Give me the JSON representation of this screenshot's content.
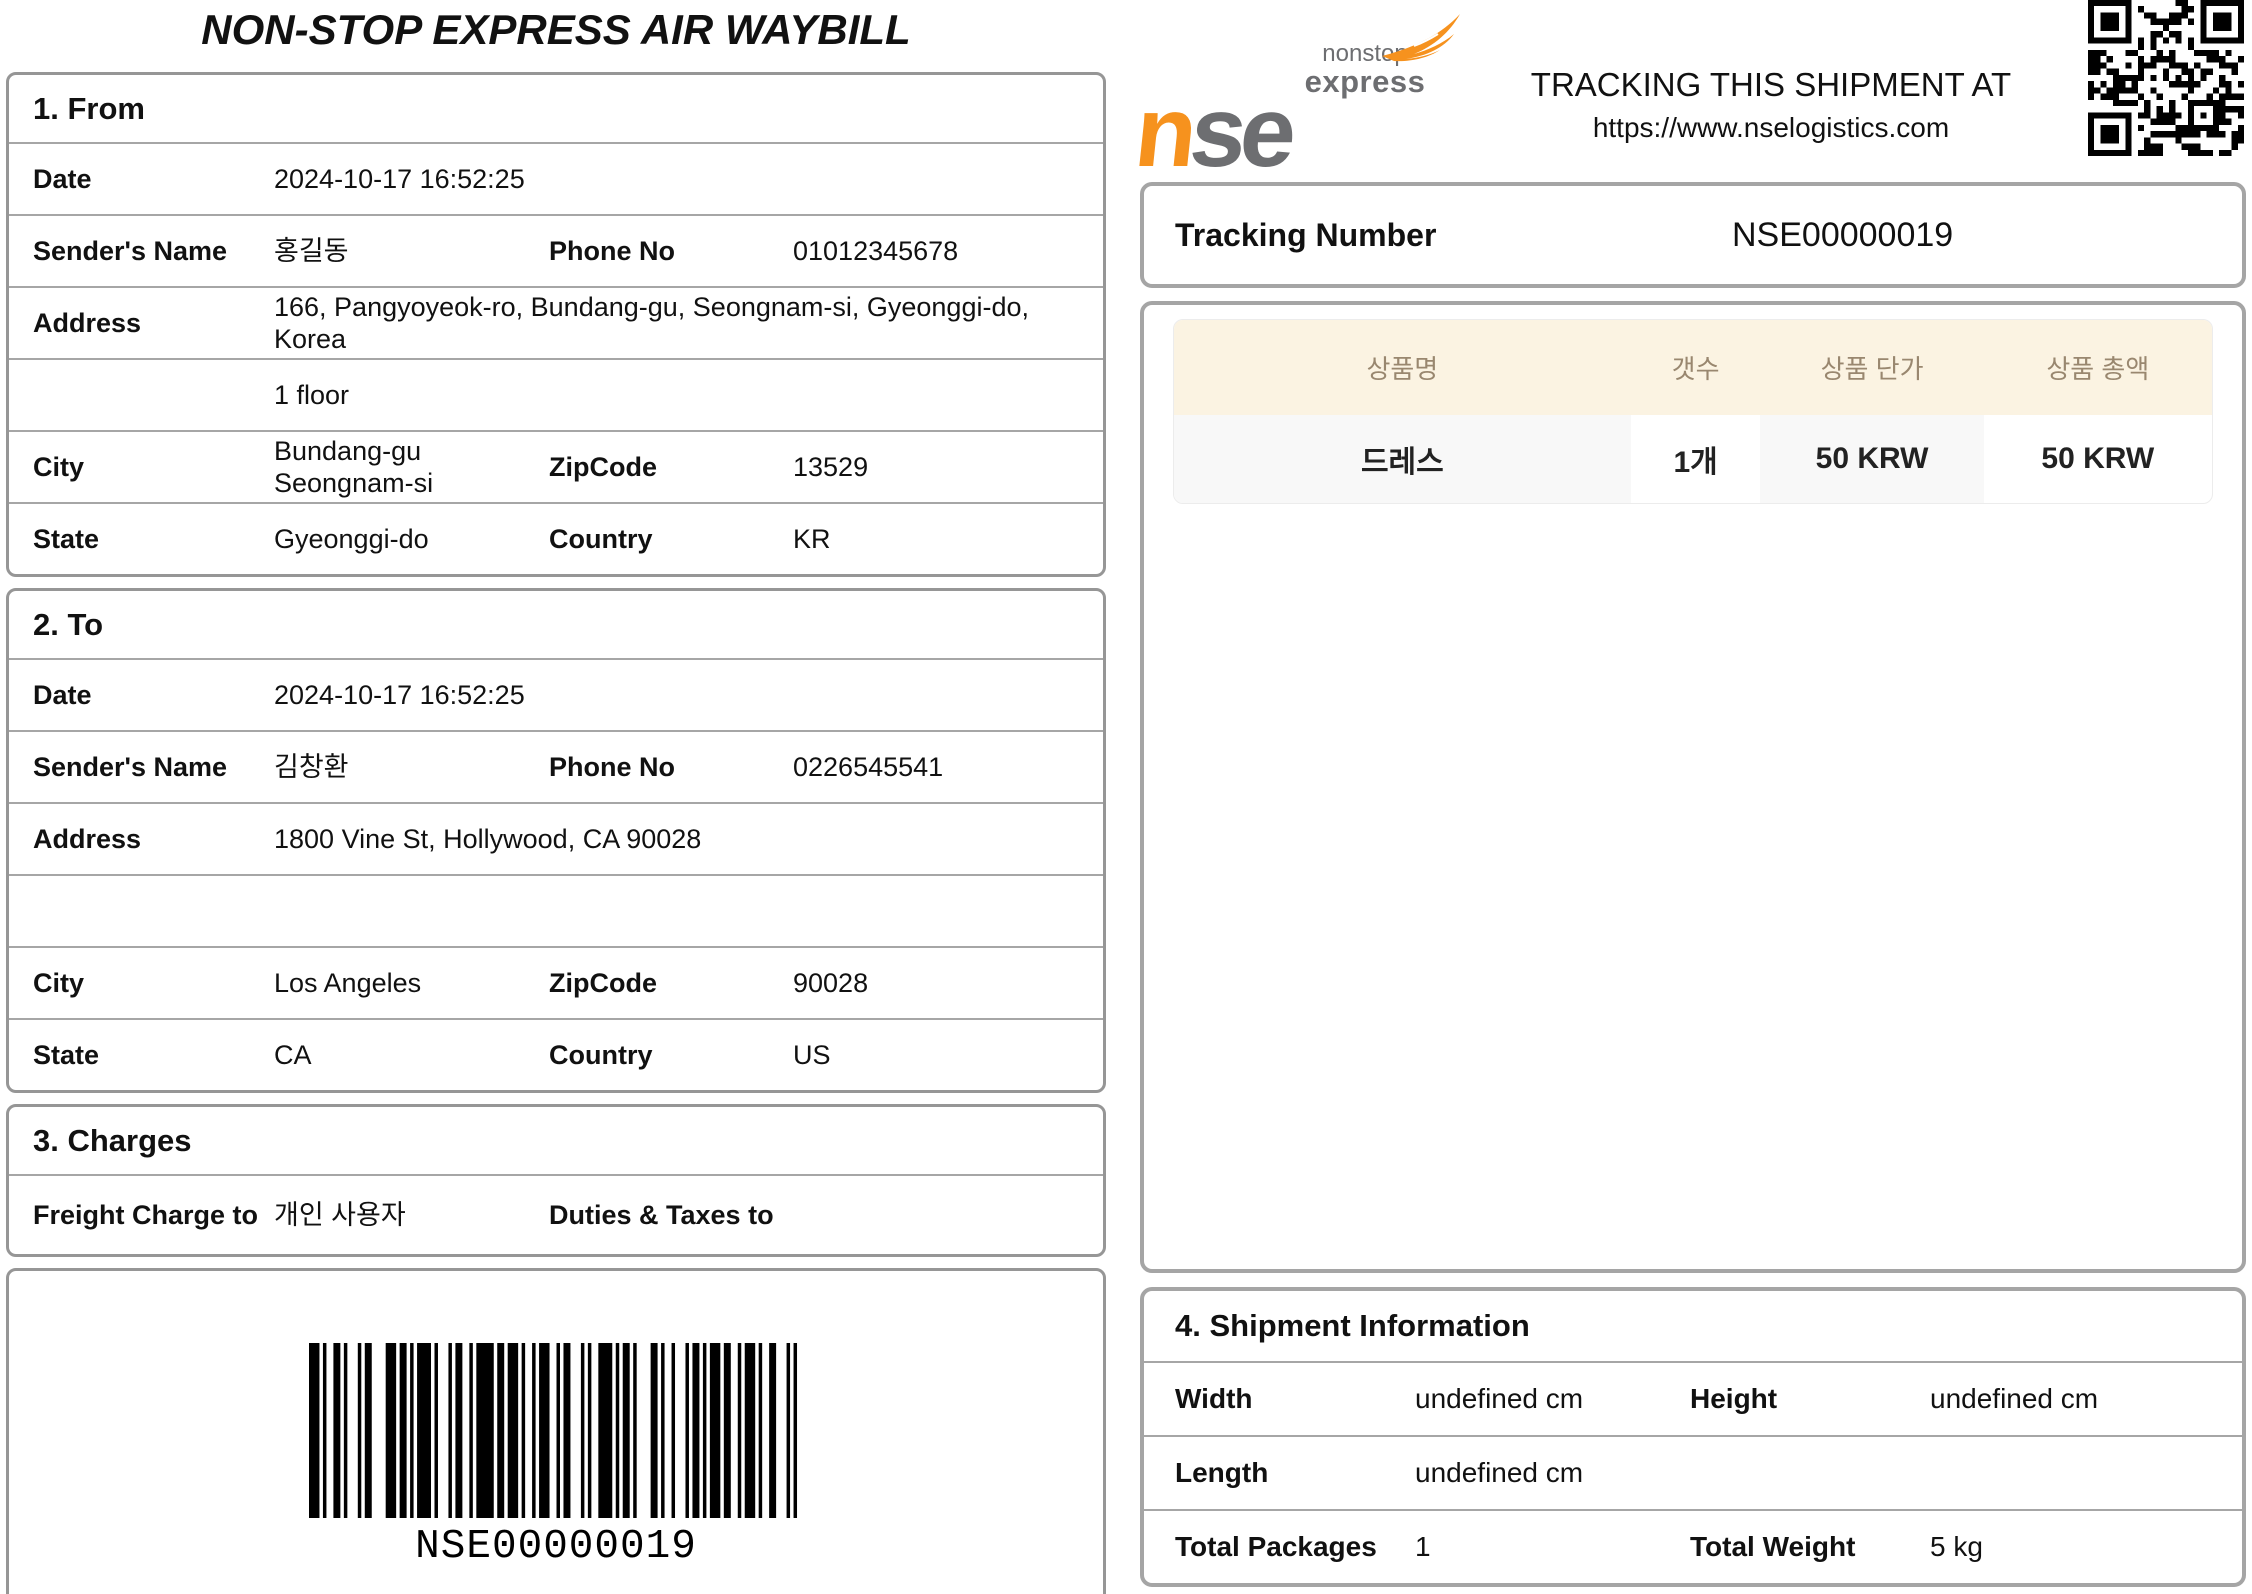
{
  "title": "NON-STOP EXPRESS AIR WAYBILL",
  "logo": {
    "nonstop": "nonstop",
    "express": "express",
    "n": "n",
    "se": "se"
  },
  "banner": {
    "line1": "TRACKING THIS SHIPMENT AT",
    "line2": "https://www.nselogistics.com"
  },
  "tracking": {
    "label": "Tracking Number",
    "value": "NSE00000019"
  },
  "from": {
    "title": "1. From",
    "date_label": "Date",
    "date": "2024-10-17 16:52:25",
    "name_label": "Sender's Name",
    "name": "홍길동",
    "phone_label": "Phone No",
    "phone": "01012345678",
    "address_label": "Address",
    "address": "166, Pangyoyeok-ro, Bundang-gu, Seongnam-si, Gyeonggi-do, Korea",
    "address2": "1 floor",
    "city_label": "City",
    "city": "Bundang-gu Seongnam-si",
    "zip_label": "ZipCode",
    "zip": "13529",
    "state_label": "State",
    "state": "Gyeonggi-do",
    "country_label": "Country",
    "country": "KR"
  },
  "to": {
    "title": "2. To",
    "date_label": "Date",
    "date": "2024-10-17 16:52:25",
    "name_label": "Sender's Name",
    "name": "김창환",
    "phone_label": "Phone No",
    "phone": "0226545541",
    "address_label": "Address",
    "address": "1800 Vine St, Hollywood, CA 90028",
    "address2": "",
    "city_label": "City",
    "city": "Los Angeles",
    "zip_label": "ZipCode",
    "zip": "90028",
    "state_label": "State",
    "state": "CA",
    "country_label": "Country",
    "country": "US"
  },
  "charges": {
    "title": "3. Charges",
    "freight_label": "Freight Charge to",
    "freight_value": "개인 사용자",
    "duties_label": "Duties & Taxes to",
    "duties_value": ""
  },
  "barcode": {
    "text": "NSE00000019"
  },
  "products": {
    "headers": [
      "상품명",
      "갯수",
      "상품 단가",
      "상품 총액"
    ],
    "rows": [
      [
        "드레스",
        "1개",
        "50 KRW",
        "50 KRW"
      ]
    ]
  },
  "shipment": {
    "title": "4. Shipment Information",
    "width_label": "Width",
    "width": "undefined cm",
    "height_label": "Height",
    "height": "undefined cm",
    "length_label": "Length",
    "length": "undefined cm",
    "packages_label": "Total Packages",
    "packages": "1",
    "weight_label": "Total Weight",
    "weight": "5 kg"
  },
  "colors": {
    "brand_orange": "#f6921e",
    "brand_gray": "#6d6e71",
    "table_header_bg": "#fbf3e2",
    "table_header_text": "#99876f",
    "row_alt_bg": "#f8f8f8",
    "box_border_left": "#969696",
    "box_border_right": "#a5a5a5"
  }
}
